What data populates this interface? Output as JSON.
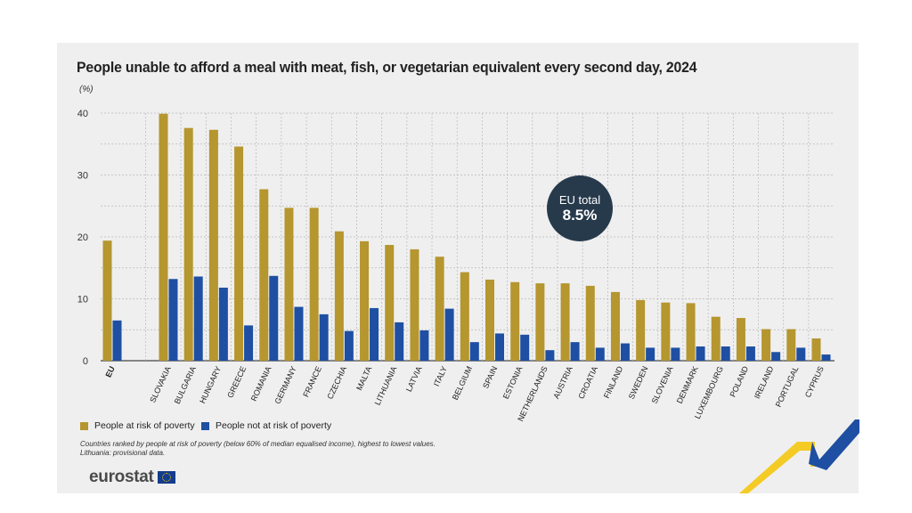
{
  "colors": {
    "at_risk": "#b5962f",
    "not_at_risk": "#1e4fa3",
    "grid": "#b9b9b9",
    "badge_bg": "#273a4c",
    "panel_bg": "#efefef"
  },
  "badge": {
    "label": "EU total",
    "value": "8.5%"
  },
  "legend": {
    "at_risk_label": "People at risk of poverty",
    "not_at_risk_label": "People not at risk of poverty"
  },
  "notes": {
    "line1": "Countries ranked by people at risk of poverty (below 60% of median equalised income), highest to lowest values.",
    "line2": "Lithuania: provisional data."
  },
  "logo": {
    "text": "eurostat",
    "flag_icon": "eu-flag-icon"
  },
  "chart_data": {
    "type": "bar",
    "title": "People unable to afford a meal with meat, fish, or vegetarian equivalent every second day, 2024",
    "ylabel": "(%)",
    "xlabel": "",
    "ylim": [
      0,
      40
    ],
    "yticks": [
      0,
      10,
      20,
      30,
      40
    ],
    "grid": true,
    "legend_position": "bottom-left",
    "categories": [
      "EU",
      "SLOVAKIA",
      "BULGARIA",
      "HUNGARY",
      "GREECE",
      "ROMANIA",
      "GERMANY",
      "FRANCE",
      "CZECHIA",
      "MALTA",
      "LITHUANIA",
      "LATVIA",
      "ITALY",
      "BELGIUM",
      "SPAIN",
      "ESTONIA",
      "NETHERLANDS",
      "AUSTRIA",
      "CROATIA",
      "FINLAND",
      "SWEDEN",
      "SLOVENIA",
      "DENMARK",
      "LUXEMBOURG",
      "POLAND",
      "IRELAND",
      "PORTUGAL",
      "CYPRUS"
    ],
    "series": [
      {
        "name": "People at risk of poverty",
        "values": [
          19.4,
          39.9,
          37.6,
          37.3,
          34.6,
          27.7,
          24.7,
          24.7,
          20.9,
          19.3,
          18.7,
          18.0,
          16.8,
          14.3,
          13.1,
          12.7,
          12.5,
          12.5,
          12.1,
          11.1,
          9.8,
          9.4,
          9.3,
          7.1,
          6.9,
          5.1,
          5.1,
          3.6
        ]
      },
      {
        "name": "People not at risk of poverty",
        "values": [
          6.5,
          13.2,
          13.6,
          11.8,
          5.7,
          13.7,
          8.7,
          7.5,
          4.8,
          8.5,
          6.2,
          4.9,
          8.4,
          3.0,
          4.4,
          4.2,
          1.7,
          3.0,
          2.1,
          2.8,
          2.1,
          2.1,
          2.3,
          2.3,
          2.3,
          1.4,
          2.1,
          1.0
        ]
      }
    ]
  }
}
